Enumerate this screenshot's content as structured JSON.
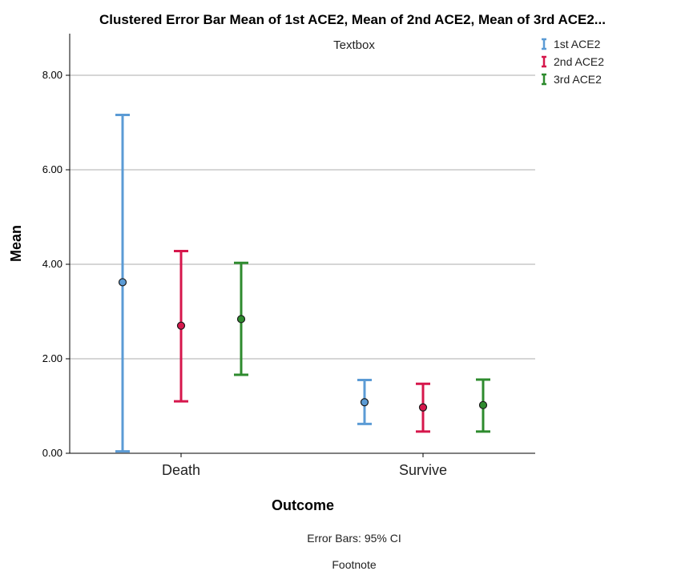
{
  "chart_data": {
    "type": "error-bar",
    "title": "Clustered Error Bar Mean of 1st ACE2, Mean of 2nd ACE2, Mean of 3rd ACE2...",
    "textbox": "Textbox",
    "xlabel": "Outcome",
    "ylabel": "Mean",
    "categories": [
      "Death",
      "Survive"
    ],
    "ylim": [
      0,
      8.6
    ],
    "yticks": [
      "0.00",
      "2.00",
      "4.00",
      "6.00",
      "8.00"
    ],
    "ytick_values": [
      0,
      2,
      4,
      6,
      8
    ],
    "grid": true,
    "legend_position": "top-right",
    "series": [
      {
        "name": "1st ACE2",
        "color": "#5b9bd5",
        "means": [
          3.62,
          1.08
        ],
        "lower": [
          0.04,
          0.62
        ],
        "upper": [
          7.16,
          1.55
        ]
      },
      {
        "name": "2nd ACE2",
        "color": "#d6174c",
        "means": [
          2.7,
          0.97
        ],
        "lower": [
          1.1,
          0.46
        ],
        "upper": [
          4.28,
          1.47
        ]
      },
      {
        "name": "3rd ACE2",
        "color": "#2e8b2e",
        "means": [
          2.84,
          1.02
        ],
        "lower": [
          1.66,
          0.46
        ],
        "upper": [
          4.03,
          1.56
        ]
      }
    ],
    "error_bar_note": "Error Bars: 95% CI",
    "footnote": "Footnote"
  }
}
